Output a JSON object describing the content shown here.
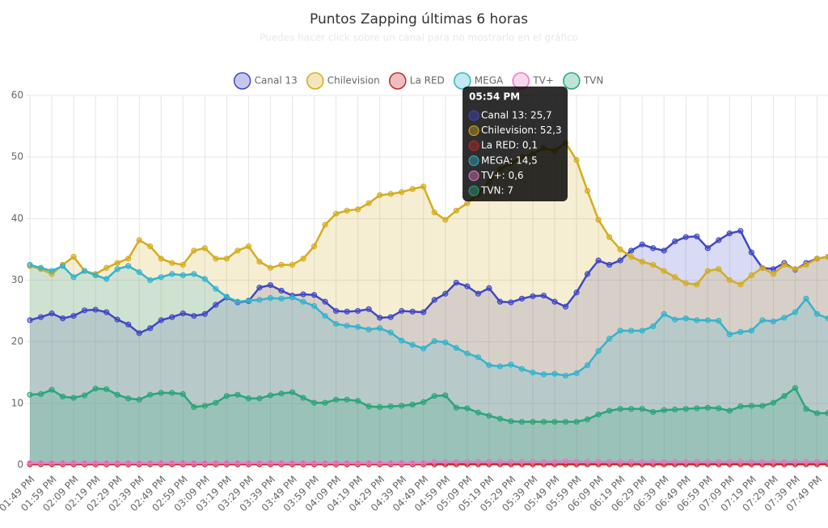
{
  "chart_data": {
    "type": "line",
    "title": "Puntos Zapping últimas 6 horas",
    "subtitle": "Puedes hacer click sobre un canal para no mostrarlo en el gráfico",
    "categories": [
      "01:49 PM",
      null,
      "01:59 PM",
      null,
      "02:09 PM",
      null,
      "02:19 PM",
      null,
      "02:29 PM",
      null,
      "02:39 PM",
      null,
      "02:49 PM",
      null,
      "02:59 PM",
      null,
      "03:09 PM",
      null,
      "03:19 PM",
      null,
      "03:29 PM",
      null,
      "03:39 PM",
      null,
      "03:49 PM",
      null,
      "03:59 PM",
      null,
      "04:09 PM",
      null,
      "04:19 PM",
      null,
      "04:29 PM",
      null,
      "04:39 PM",
      null,
      "04:49 PM",
      null,
      "04:59 PM",
      null,
      "05:09 PM",
      null,
      "05:19 PM",
      null,
      "05:29 PM",
      null,
      "05:39 PM",
      null,
      "05:49 PM",
      null,
      "05:59 PM",
      null,
      "06:09 PM",
      null,
      "06:19 PM",
      null,
      "06:29 PM",
      null,
      "06:39 PM",
      null,
      "06:49 PM",
      null,
      "06:59 PM",
      null,
      "07:09 PM",
      null,
      "07:19 PM",
      null,
      "07:29 PM",
      null,
      "07:39 PM",
      null,
      "07:49 PM",
      null
    ],
    "ylim": [
      0,
      60
    ],
    "yticks": [
      0,
      10,
      20,
      30,
      40,
      50,
      60
    ],
    "grid": true,
    "series": [
      {
        "name": "Canal 13",
        "color": "#3f48c4",
        "values": [
          23.5,
          24,
          24.6,
          23.8,
          24.2,
          25.1,
          25.2,
          24.8,
          23.6,
          22.8,
          21.4,
          22.2,
          23.5,
          24,
          24.6,
          24.2,
          24.5,
          26,
          27.2,
          26.4,
          26.6,
          28.8,
          29.2,
          28.3,
          27.5,
          27.7,
          27.6,
          26.5,
          25,
          24.9,
          25,
          25.3,
          23.9,
          24,
          25,
          24.9,
          24.8,
          26.8,
          27.8,
          29.6,
          29,
          27.8,
          28.7,
          26.5,
          26.4,
          27,
          27.4,
          27.5,
          26.5,
          25.7,
          28,
          31,
          33.2,
          32.5,
          33.2,
          34.8,
          35.8,
          35.2,
          34.8,
          36.3,
          37,
          37.1,
          35.2,
          36.5,
          37.6,
          38,
          34.5,
          32,
          31.8,
          32.8,
          31.7,
          32.8,
          33.5,
          33.8
        ]
      },
      {
        "name": "Chilevision",
        "color": "#d4ac1e",
        "values": [
          32.3,
          31.8,
          31,
          32.5,
          33.8,
          31.5,
          31,
          32,
          32.8,
          33.5,
          36.5,
          35.5,
          33.5,
          32.8,
          32.5,
          34.8,
          35.2,
          33.5,
          33.5,
          34.8,
          35.5,
          33,
          32,
          32.5,
          32.5,
          33.5,
          35.5,
          39,
          40.8,
          41.3,
          41.5,
          42.5,
          43.8,
          44,
          44.3,
          44.8,
          45.2,
          41,
          39.8,
          41.3,
          42.5,
          44,
          46,
          48,
          49,
          50,
          50.5,
          51.5,
          51,
          52.3,
          49.5,
          44.5,
          39.8,
          37,
          35,
          33.8,
          33,
          32.5,
          31.5,
          30.5,
          29.5,
          29.3,
          31.5,
          31.8,
          30,
          29.3,
          30.8,
          32,
          31,
          32.5,
          31.8,
          32.5,
          33.5,
          33.8
        ]
      },
      {
        "name": "La RED",
        "color": "#c62828",
        "values": [
          0.1,
          0.1,
          0.1,
          0.1,
          0.1,
          0.1,
          0.1,
          0.1,
          0.1,
          0.1,
          0.1,
          0.1,
          0.1,
          0.1,
          0.1,
          0.1,
          0.1,
          0.1,
          0.1,
          0.1,
          0.1,
          0.1,
          0.1,
          0.1,
          0.1,
          0.1,
          0.1,
          0.1,
          0.1,
          0.1,
          0.1,
          0.1,
          0.1,
          0.1,
          0.1,
          0.1,
          0.1,
          0.1,
          0.1,
          0.1,
          0.1,
          0.1,
          0.1,
          0.1,
          0.1,
          0.1,
          0.1,
          0.1,
          0.1,
          0.1,
          0.1,
          0.1,
          0.1,
          0.1,
          0.1,
          0.1,
          0.1,
          0.1,
          0.1,
          0.1,
          0.1,
          0.1,
          0.1,
          0.1,
          0.1,
          0.1,
          0.1,
          0.1,
          0.1,
          0.1,
          0.1,
          0.1,
          0.1,
          0.1
        ]
      },
      {
        "name": "MEGA",
        "color": "#35b3cc",
        "values": [
          32.5,
          32,
          31.5,
          32.3,
          30.5,
          31.5,
          30.8,
          30.2,
          31.8,
          32.3,
          31.3,
          30,
          30.5,
          31,
          30.8,
          31,
          30.2,
          28.6,
          27.3,
          26.5,
          26.7,
          26.8,
          27.1,
          27,
          27.2,
          26.5,
          25.8,
          24.2,
          22.9,
          22.6,
          22.4,
          22,
          22.2,
          21.5,
          20.2,
          19.5,
          18.9,
          20.1,
          19.9,
          19,
          18.1,
          17.5,
          16.2,
          16,
          16.3,
          15.6,
          15,
          14.7,
          14.8,
          14.5,
          14.9,
          16.2,
          18.5,
          20.5,
          21.8,
          21.8,
          21.8,
          22.5,
          24.5,
          23.6,
          23.8,
          23.5,
          23.5,
          23.4,
          21.2,
          21.6,
          21.8,
          23.5,
          23.3,
          23.9,
          24.8,
          27,
          24.5,
          23.8
        ]
      },
      {
        "name": "TV+",
        "color": "#e27ac4",
        "values": [
          0.3,
          0.3,
          0.3,
          0.3,
          0.3,
          0.3,
          0.3,
          0.3,
          0.3,
          0.3,
          0.3,
          0.3,
          0.3,
          0.3,
          0.3,
          0.3,
          0.3,
          0.3,
          0.3,
          0.3,
          0.3,
          0.3,
          0.3,
          0.3,
          0.3,
          0.3,
          0.3,
          0.3,
          0.3,
          0.3,
          0.3,
          0.3,
          0.3,
          0.3,
          0.3,
          0.3,
          0.3,
          0.5,
          0.5,
          0.5,
          0.5,
          0.5,
          0.5,
          0.5,
          0.5,
          0.5,
          0.5,
          0.5,
          0.5,
          0.6,
          0.5,
          0.5,
          0.5,
          0.5,
          0.5,
          0.5,
          0.5,
          0.5,
          0.5,
          0.5,
          0.5,
          0.5,
          0.5,
          0.5,
          0.5,
          0.5,
          0.5,
          0.5,
          0.5,
          0.5,
          0.5,
          0.5,
          0.5,
          0.5
        ]
      },
      {
        "name": "TVN",
        "color": "#2aa57a",
        "values": [
          11.4,
          11.5,
          12.2,
          11.1,
          10.9,
          11.3,
          12.4,
          12.3,
          11.4,
          10.8,
          10.6,
          11.4,
          11.7,
          11.7,
          11.5,
          9.4,
          9.6,
          10.1,
          11.2,
          11.4,
          10.8,
          10.8,
          11.3,
          11.6,
          11.8,
          10.9,
          10.1,
          10.1,
          10.6,
          10.6,
          10.4,
          9.5,
          9.4,
          9.5,
          9.6,
          9.8,
          10.2,
          11.2,
          11.3,
          9.3,
          9.2,
          8.5,
          8,
          7.5,
          7.1,
          7,
          7,
          7,
          7,
          7,
          7,
          7.4,
          8.2,
          8.8,
          9.1,
          9.1,
          9.1,
          8.6,
          8.9,
          9,
          9.1,
          9.2,
          9.3,
          9.2,
          8.8,
          9.5,
          9.6,
          9.6,
          10.1,
          11.2,
          12.5,
          9.1,
          8.4,
          8.4
        ]
      }
    ],
    "tooltip": {
      "title": "05:54 PM",
      "lines": [
        "Canal 13: 25,7",
        "Chilevision: 52,3",
        "La RED: 0,1",
        "MEGA: 14,5",
        "TV+: 0,6",
        "TVN: 7"
      ]
    }
  }
}
